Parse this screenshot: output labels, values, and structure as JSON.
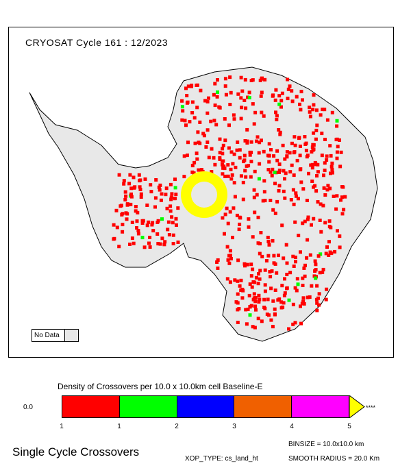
{
  "map": {
    "title": "CRYOSAT Cycle 161 : 12/2023",
    "nodata_label": "No Data",
    "colors": {
      "land": "#e8e8e8",
      "outline": "#000000",
      "crossover": "#ff0000",
      "highlight": "#00ff00",
      "pole": "#ffff00"
    }
  },
  "legend": {
    "title": "Density of Crossovers per  10.0 x  10.0km cell Baseline-E",
    "zero_label": "0.0",
    "overflow_label": "****",
    "ticks": [
      "1",
      "1",
      "2",
      "3",
      "4",
      "5"
    ],
    "colors": [
      "#ff0000",
      "#00ff00",
      "#0000ff",
      "#f06000",
      "#ff00ff",
      "#ffff00"
    ]
  },
  "footer": {
    "title": "Single Cycle Crossovers",
    "binsize": "BINSIZE  =  10.0x10.0  km",
    "xop_type": "XOP_TYPE:  cs_land_ht",
    "smooth_radius": "SMOOTH RADIUS  =   20.0  Km"
  }
}
